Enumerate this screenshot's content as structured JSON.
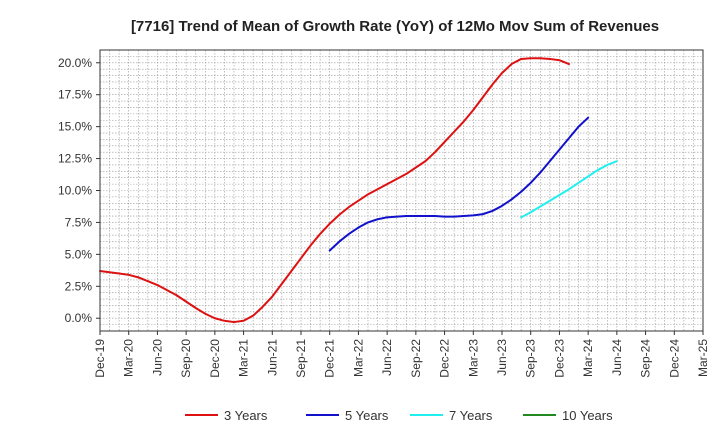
{
  "chart_data": {
    "type": "line",
    "title": "[7716]  Trend of Mean of Growth Rate (YoY) of 12Mo Mov Sum of Revenues",
    "xlabel": "",
    "ylabel": "",
    "ylim": [
      -1.0,
      21.0
    ],
    "grid": true,
    "legend_position": "bottom",
    "x_ticks": [
      "Dec-19",
      "Mar-20",
      "Jun-20",
      "Sep-20",
      "Dec-20",
      "Mar-21",
      "Jun-21",
      "Sep-21",
      "Dec-21",
      "Mar-22",
      "Jun-22",
      "Sep-22",
      "Dec-22",
      "Mar-23",
      "Jun-23",
      "Sep-23",
      "Dec-23",
      "Mar-24",
      "Jun-24",
      "Sep-24",
      "Dec-24",
      "Mar-25"
    ],
    "y_ticks": [
      0.0,
      2.5,
      5.0,
      7.5,
      10.0,
      12.5,
      15.0,
      17.5,
      20.0
    ],
    "y_tick_labels": [
      "0.0%",
      "2.5%",
      "5.0%",
      "7.5%",
      "10.0%",
      "12.5%",
      "15.0%",
      "17.5%",
      "20.0%"
    ],
    "series": [
      {
        "name": "3 Years",
        "color": "#dd1111",
        "start_index": 0,
        "values": [
          3.7,
          3.6,
          3.5,
          3.4,
          3.2,
          2.9,
          2.6,
          2.2,
          1.8,
          1.3,
          0.8,
          0.35,
          0.0,
          -0.2,
          -0.3,
          -0.2,
          0.2,
          0.9,
          1.7,
          2.7,
          3.7,
          4.7,
          5.7,
          6.6,
          7.4,
          8.1,
          8.7,
          9.2,
          9.7,
          10.1,
          10.5,
          10.9,
          11.3,
          11.8,
          12.3,
          13.0,
          13.8,
          14.6,
          15.4,
          16.3,
          17.3,
          18.3,
          19.2,
          19.9,
          20.3,
          20.35,
          20.35,
          20.3,
          20.2,
          19.9
        ]
      },
      {
        "name": "5 Years",
        "color": "#1111cc",
        "start_index": 24,
        "values": [
          5.3,
          6.0,
          6.6,
          7.1,
          7.5,
          7.75,
          7.9,
          7.95,
          8.0,
          8.0,
          8.0,
          8.0,
          7.95,
          7.95,
          8.0,
          8.05,
          8.15,
          8.4,
          8.8,
          9.3,
          9.9,
          10.6,
          11.4,
          12.3,
          13.2,
          14.1,
          15.0,
          15.7
        ]
      },
      {
        "name": "7 Years",
        "color": "#22eeee",
        "start_index": 44,
        "values": [
          7.9,
          8.3,
          8.75,
          9.2,
          9.65,
          10.1,
          10.6,
          11.1,
          11.6,
          12.0,
          12.3
        ]
      },
      {
        "name": "10 Years",
        "color": "#228822",
        "start_index": 0,
        "values": []
      }
    ]
  }
}
